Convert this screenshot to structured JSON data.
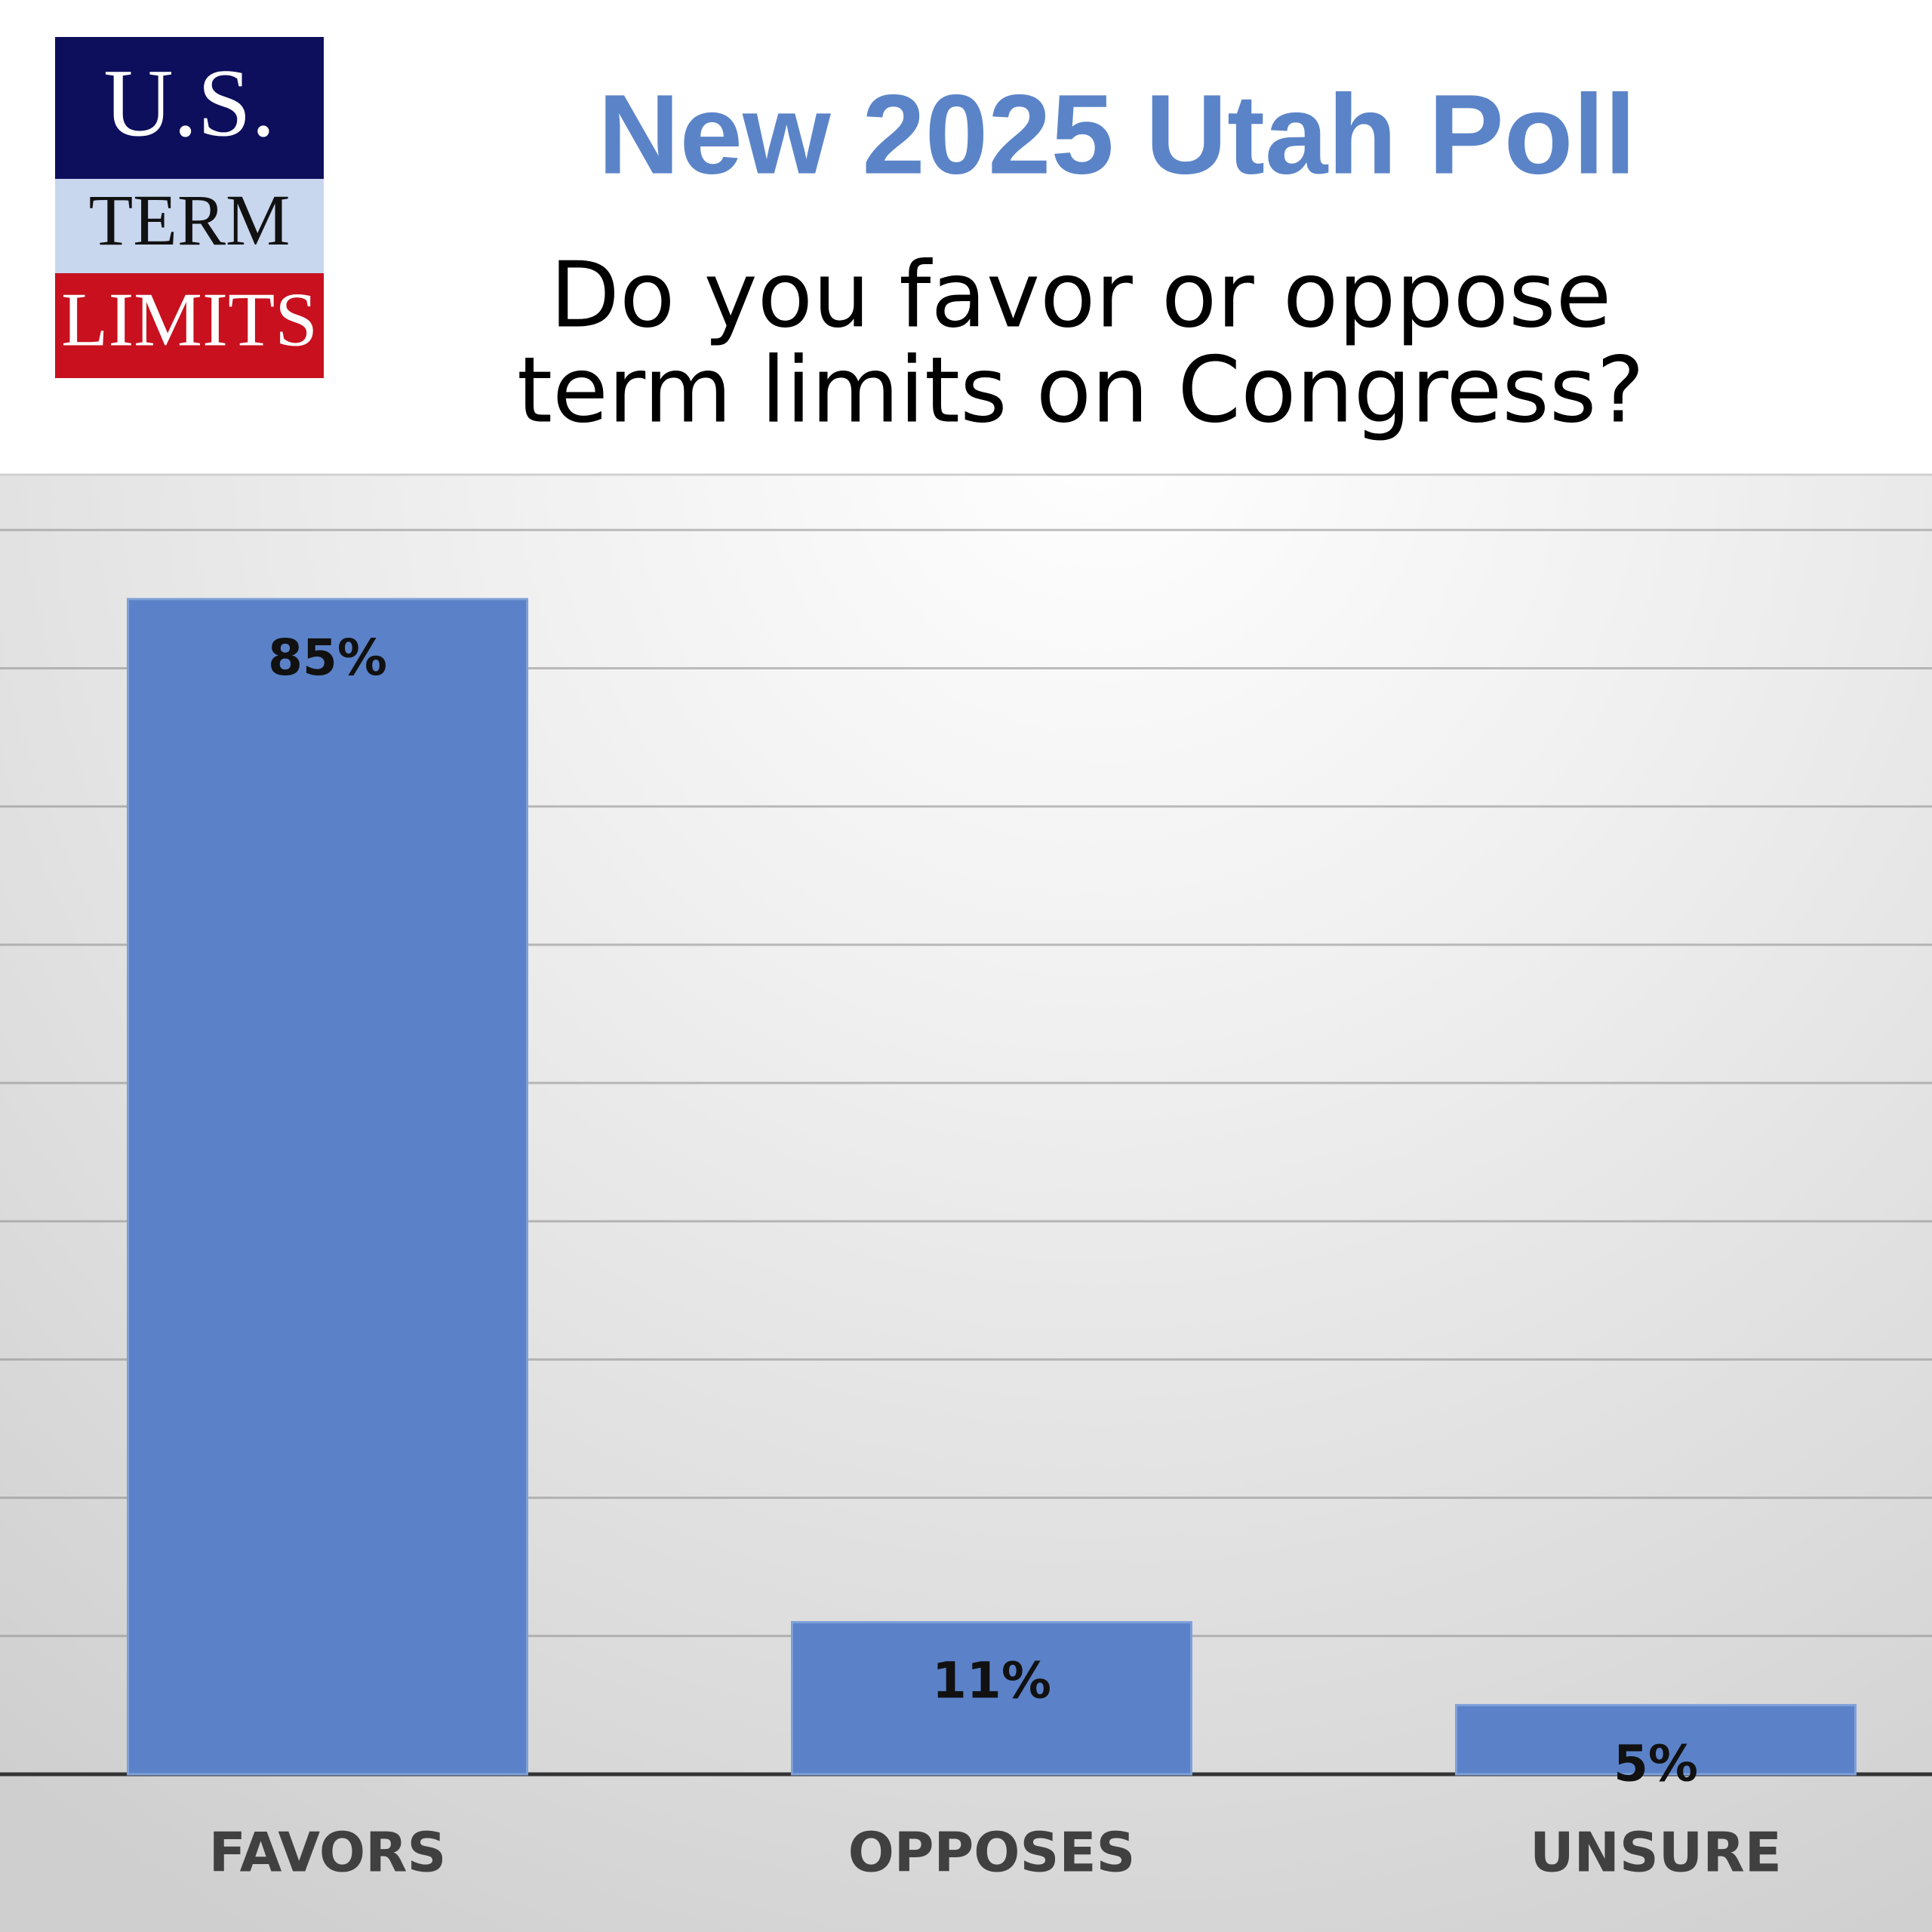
{
  "logo": {
    "lines": [
      "U.S.",
      "TERM",
      "LIMITS"
    ]
  },
  "chart_data": {
    "type": "bar",
    "title": "New 2025 Utah Poll",
    "subtitle": [
      "Do you favor or oppose",
      "term limits on Congress?"
    ],
    "categories": [
      "FAVORS",
      "OPPOSES",
      "UNSURE"
    ],
    "values": [
      85,
      11,
      5
    ],
    "value_labels": [
      "85%",
      "11%",
      "5%"
    ],
    "color": "#5b82c8",
    "ylim": [
      0,
      94
    ],
    "yticks": [
      0,
      10,
      20,
      30,
      40,
      50,
      60,
      70,
      80,
      90
    ],
    "grid": true
  }
}
